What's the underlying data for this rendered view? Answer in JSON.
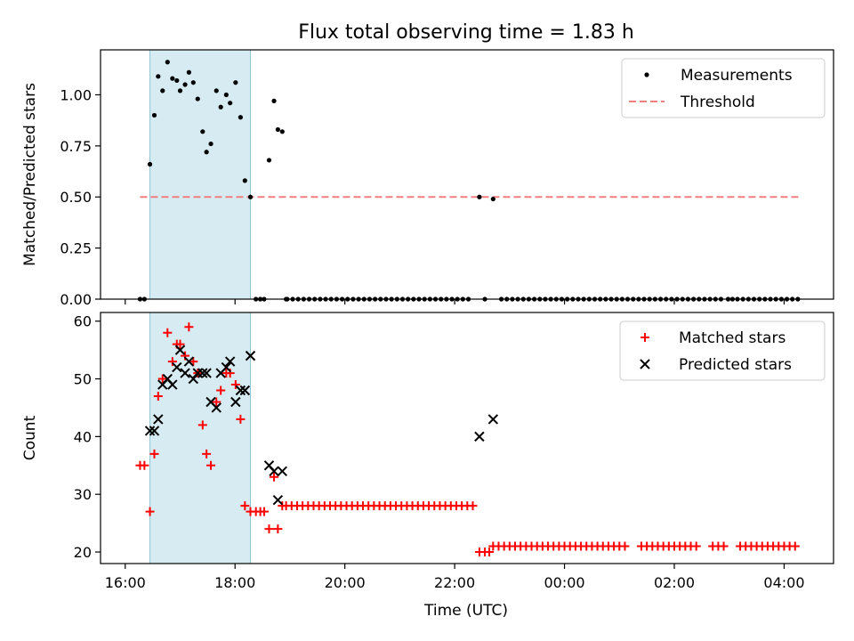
{
  "chart_data": {
    "title": "Flux total observing time = 1.83 h",
    "xlabel": "Time (UTC)",
    "x_unit": "hours since 16:00 UTC",
    "xlim": [
      -0.45,
      12.9
    ],
    "xticks": [
      {
        "x": 0,
        "label": "16:00"
      },
      {
        "x": 2,
        "label": "18:00"
      },
      {
        "x": 4,
        "label": "20:00"
      },
      {
        "x": 6,
        "label": "22:00"
      },
      {
        "x": 8,
        "label": "00:00"
      },
      {
        "x": 10,
        "label": "02:00"
      },
      {
        "x": 12,
        "label": "04:00"
      }
    ],
    "highlight_span": [
      0.45,
      2.28
    ],
    "panels": [
      {
        "type": "scatter",
        "ylabel": "Matched/Predicted stars",
        "ylim": [
          0,
          1.22
        ],
        "yticks": [
          {
            "y": 0,
            "label": "0.00"
          },
          {
            "y": 0.25,
            "label": "0.25"
          },
          {
            "y": 0.5,
            "label": "0.50"
          },
          {
            "y": 0.75,
            "label": "0.75"
          },
          {
            "y": 1.0,
            "label": "1.00"
          }
        ],
        "legend": {
          "position": "top-right",
          "entries": [
            {
              "label": "Measurements",
              "marker": "dot"
            },
            {
              "label": "Threshold",
              "marker": "dashed-line"
            }
          ]
        },
        "threshold": {
          "value": 0.5,
          "x_range": [
            0.27,
            12.27
          ],
          "color": "#f08080"
        },
        "series": [
          {
            "name": "Measurements",
            "marker": "dot",
            "color": "#000000",
            "points": [
              [
                0.27,
                0
              ],
              [
                0.35,
                0
              ],
              [
                0.45,
                0.66
              ],
              [
                0.53,
                0.9
              ],
              [
                0.6,
                1.09
              ],
              [
                0.68,
                1.02
              ],
              [
                0.77,
                1.16
              ],
              [
                0.86,
                1.08
              ],
              [
                0.94,
                1.07
              ],
              [
                1.0,
                1.02
              ],
              [
                1.09,
                1.05
              ],
              [
                1.16,
                1.11
              ],
              [
                1.24,
                1.06
              ],
              [
                1.32,
                0.98
              ],
              [
                1.41,
                0.82
              ],
              [
                1.48,
                0.72
              ],
              [
                1.56,
                0.76
              ],
              [
                1.66,
                1.02
              ],
              [
                1.74,
                0.94
              ],
              [
                1.84,
                1.0
              ],
              [
                1.91,
                0.96
              ],
              [
                2.01,
                1.06
              ],
              [
                2.1,
                0.89
              ],
              [
                2.18,
                0.58
              ],
              [
                2.28,
                0.5
              ],
              [
                2.38,
                0
              ],
              [
                2.46,
                0
              ],
              [
                2.53,
                0
              ],
              [
                2.62,
                0.68
              ],
              [
                2.71,
                0.97
              ],
              [
                2.78,
                0.83
              ],
              [
                2.86,
                0.82
              ],
              [
                2.93,
                0
              ],
              [
                6.45,
                0.5
              ],
              [
                6.55,
                0
              ],
              [
                6.7,
                0.49
              ],
              [
                9.25,
                0
              ],
              [
                10.45,
                0
              ],
              [
                10.55,
                0
              ],
              [
                10.98,
                0
              ],
              [
                11.06,
                0
              ]
            ],
            "zero_series": {
              "x_start": 2.95,
              "x_end": 12.27,
              "step": 0.1,
              "gaps": [
                [
                  6.25,
                  6.8
                ],
                [
                  9.18,
                  9.32
                ],
                [
                  10.4,
                  10.62
                ],
                [
                  10.92,
                  11.12
                ]
              ]
            }
          }
        ]
      },
      {
        "type": "scatter",
        "ylabel": "Count",
        "ylim": [
          18,
          61.5
        ],
        "yticks": [
          {
            "y": 20,
            "label": "20"
          },
          {
            "y": 30,
            "label": "30"
          },
          {
            "y": 40,
            "label": "40"
          },
          {
            "y": 50,
            "label": "50"
          },
          {
            "y": 60,
            "label": "60"
          }
        ],
        "legend": {
          "position": "top-right",
          "entries": [
            {
              "label": "Matched stars",
              "marker": "plus"
            },
            {
              "label": "Predicted stars",
              "marker": "x"
            }
          ]
        },
        "series": [
          {
            "name": "Matched stars",
            "marker": "plus",
            "color": "#ff0000",
            "points": [
              [
                0.27,
                35
              ],
              [
                0.35,
                35
              ],
              [
                0.45,
                27
              ],
              [
                0.53,
                37
              ],
              [
                0.6,
                47
              ],
              [
                0.68,
                50
              ],
              [
                0.77,
                58
              ],
              [
                0.86,
                53
              ],
              [
                0.94,
                56
              ],
              [
                1.0,
                56
              ],
              [
                1.09,
                54
              ],
              [
                1.16,
                59
              ],
              [
                1.24,
                53
              ],
              [
                1.32,
                51
              ],
              [
                1.41,
                42
              ],
              [
                1.48,
                37
              ],
              [
                1.56,
                35
              ],
              [
                1.66,
                46
              ],
              [
                1.74,
                48
              ],
              [
                1.84,
                51
              ],
              [
                1.91,
                51
              ],
              [
                2.01,
                49
              ],
              [
                2.1,
                43
              ],
              [
                2.18,
                28
              ],
              [
                2.28,
                27
              ],
              [
                2.38,
                27
              ],
              [
                2.46,
                27
              ],
              [
                2.53,
                27
              ],
              [
                2.62,
                24
              ],
              [
                2.71,
                33
              ],
              [
                2.78,
                24
              ],
              [
                2.86,
                28
              ],
              [
                6.45,
                20
              ],
              [
                6.55,
                20
              ],
              [
                6.63,
                20
              ],
              [
                6.7,
                21
              ]
            ],
            "flat_runs": [
              {
                "value": 28,
                "x_start": 2.93,
                "x_end": 6.35,
                "step": 0.1
              },
              {
                "value": 21,
                "x_start": 6.8,
                "x_end": 12.27,
                "step": 0.1,
                "gaps": [
                  [
                    9.18,
                    9.32
                  ],
                  [
                    10.4,
                    10.62
                  ],
                  [
                    10.92,
                    11.12
                  ]
                ]
              }
            ]
          },
          {
            "name": "Predicted stars",
            "marker": "x",
            "color": "#000000",
            "points": [
              [
                0.45,
                41
              ],
              [
                0.53,
                41
              ],
              [
                0.6,
                43
              ],
              [
                0.68,
                49
              ],
              [
                0.77,
                50
              ],
              [
                0.86,
                49
              ],
              [
                0.94,
                52
              ],
              [
                1.0,
                55
              ],
              [
                1.09,
                51
              ],
              [
                1.16,
                53
              ],
              [
                1.24,
                50
              ],
              [
                1.32,
                51
              ],
              [
                1.41,
                51
              ],
              [
                1.48,
                51
              ],
              [
                1.56,
                46
              ],
              [
                1.66,
                45
              ],
              [
                1.74,
                51
              ],
              [
                1.84,
                52
              ],
              [
                1.91,
                53
              ],
              [
                2.01,
                46
              ],
              [
                2.1,
                48
              ],
              [
                2.18,
                48
              ],
              [
                2.28,
                54
              ],
              [
                2.62,
                35
              ],
              [
                2.71,
                34
              ],
              [
                2.78,
                29
              ],
              [
                2.86,
                34
              ],
              [
                6.45,
                40
              ],
              [
                6.7,
                43
              ]
            ]
          }
        ]
      }
    ]
  }
}
